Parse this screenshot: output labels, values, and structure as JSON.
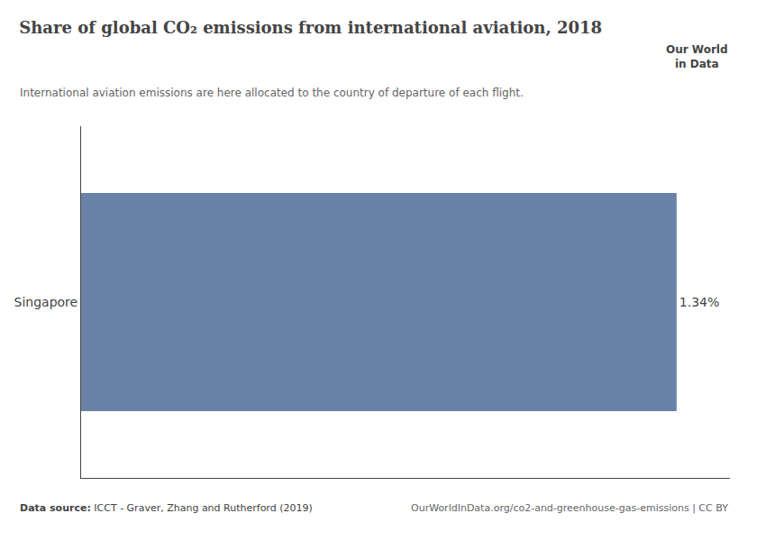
{
  "chart_data": {
    "type": "bar",
    "orientation": "horizontal",
    "title": "Share of global CO₂ emissions from international aviation, 2018",
    "subtitle": "International aviation emissions are here allocated to the country of departure of each flight.",
    "categories": [
      "Singapore"
    ],
    "values": [
      1.34
    ],
    "value_labels": [
      "1.34%"
    ],
    "data_labels": true,
    "color": "#6b82a8",
    "xlim": [
      0,
      1.46
    ],
    "xticks": [],
    "tick_labels": "y",
    "grid": false,
    "annotations": [
      "Data source:",
      " ICCT - Graver, Zhang and Rutherford (2019)",
      "OurWorldInData.org/co2-and-greenhouse-gas-emissions | CC BY",
      "Our World",
      "in Data"
    ]
  }
}
